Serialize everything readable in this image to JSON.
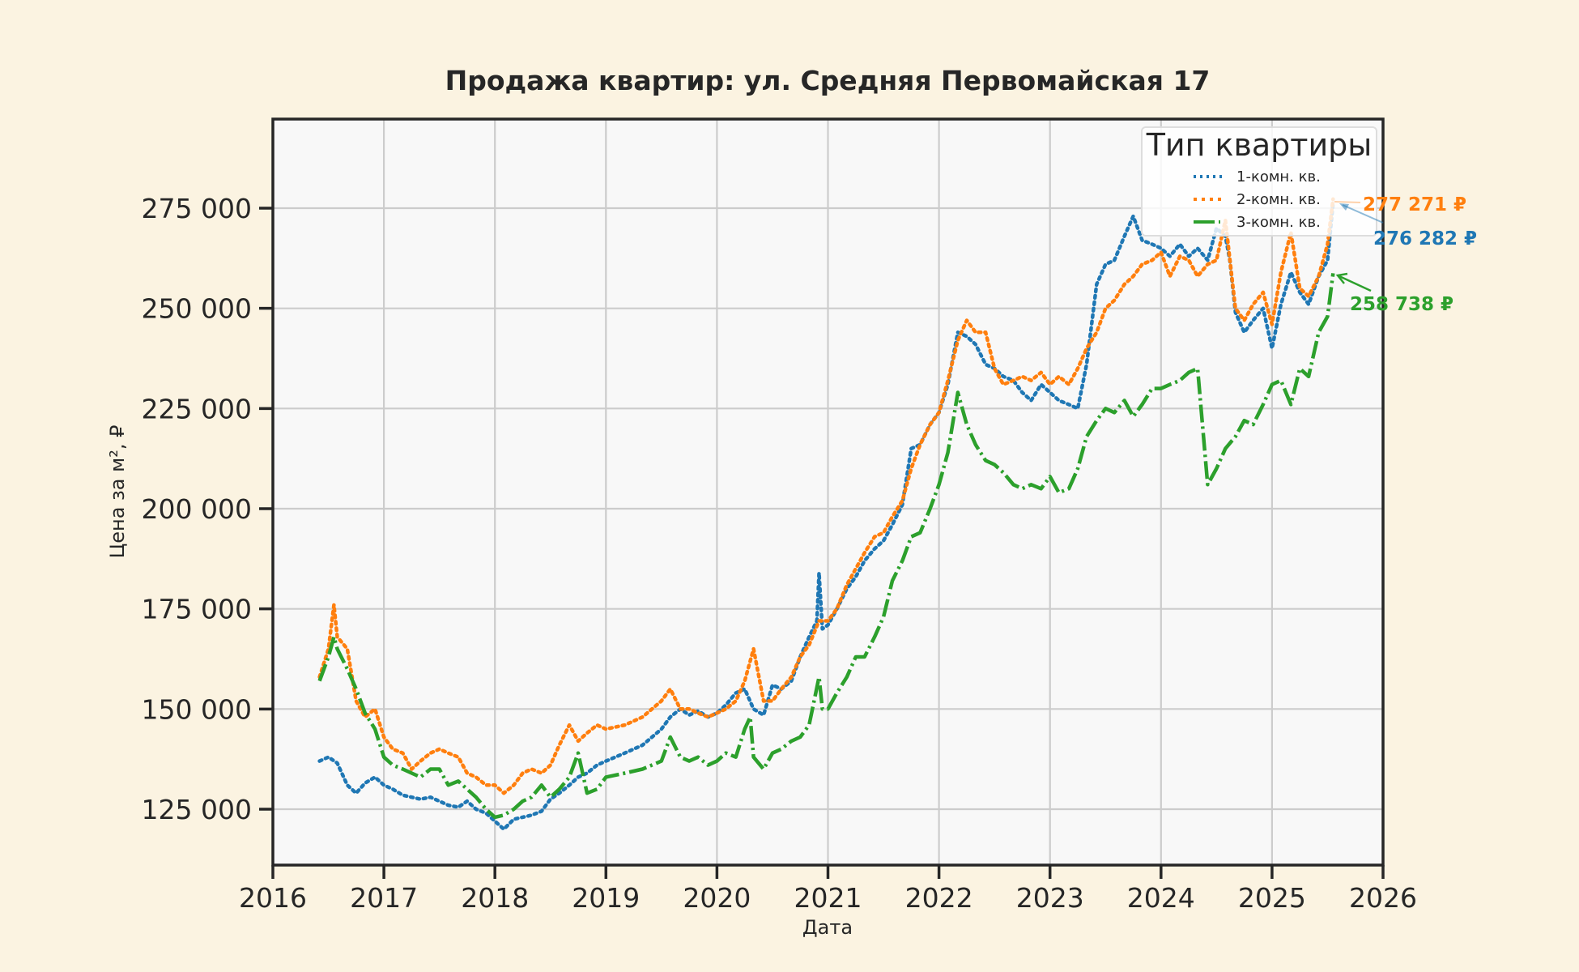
{
  "chart_data": {
    "type": "line",
    "title": "Продажа квартир: ул. Средняя Первомайская 17",
    "xlabel": "Дата",
    "ylabel": "Цена за м², ₽",
    "xlim": [
      2016,
      2026
    ],
    "ylim": [
      111000,
      297500
    ],
    "xticks": [
      2016,
      2017,
      2018,
      2019,
      2020,
      2021,
      2022,
      2023,
      2024,
      2025,
      2026
    ],
    "xtick_labels": [
      "2016",
      "2017",
      "2018",
      "2019",
      "2020",
      "2021",
      "2022",
      "2023",
      "2024",
      "2025",
      "2026"
    ],
    "yticks": [
      125000,
      150000,
      175000,
      200000,
      225000,
      250000,
      275000
    ],
    "ytick_labels": [
      "125 000",
      "150 000",
      "175 000",
      "200 000",
      "225 000",
      "250 000",
      "275 000"
    ],
    "grid": true,
    "legend": {
      "title": "Тип квартиры",
      "position": "upper right",
      "entries": [
        "1-комн. кв.",
        "2-комн. кв.",
        "3-комн. кв."
      ]
    },
    "series": [
      {
        "name": "1-комн. кв.",
        "color": "#1f77b4",
        "style": "dotted",
        "x": [
          2016.42,
          2016.5,
          2016.58,
          2016.67,
          2016.75,
          2016.83,
          2016.92,
          2017.0,
          2017.08,
          2017.17,
          2017.25,
          2017.33,
          2017.42,
          2017.5,
          2017.58,
          2017.67,
          2017.75,
          2017.83,
          2017.92,
          2018.0,
          2018.08,
          2018.17,
          2018.25,
          2018.33,
          2018.42,
          2018.5,
          2018.58,
          2018.67,
          2018.75,
          2018.83,
          2018.92,
          2019.0,
          2019.17,
          2019.33,
          2019.5,
          2019.58,
          2019.67,
          2019.75,
          2019.83,
          2019.92,
          2020.0,
          2020.08,
          2020.17,
          2020.25,
          2020.33,
          2020.42,
          2020.5,
          2020.58,
          2020.67,
          2020.75,
          2020.83,
          2020.9,
          2020.92,
          2020.95,
          2021.0,
          2021.08,
          2021.17,
          2021.25,
          2021.33,
          2021.42,
          2021.5,
          2021.58,
          2021.67,
          2021.75,
          2021.83,
          2021.92,
          2022.0,
          2022.08,
          2022.17,
          2022.25,
          2022.33,
          2022.42,
          2022.5,
          2022.58,
          2022.67,
          2022.75,
          2022.83,
          2022.92,
          2023.0,
          2023.08,
          2023.17,
          2023.25,
          2023.33,
          2023.42,
          2023.5,
          2023.58,
          2023.67,
          2023.75,
          2023.83,
          2023.92,
          2024.0,
          2024.08,
          2024.17,
          2024.25,
          2024.33,
          2024.42,
          2024.5,
          2024.58,
          2024.62,
          2024.67,
          2024.75,
          2024.83,
          2024.92,
          2025.0,
          2025.08,
          2025.17,
          2025.25,
          2025.33,
          2025.42,
          2025.5,
          2025.55
        ],
        "y": [
          137000,
          138000,
          136500,
          131000,
          129000,
          131500,
          133000,
          131000,
          130000,
          128500,
          128000,
          127500,
          128000,
          127000,
          126000,
          125500,
          127000,
          125000,
          124000,
          122000,
          120000,
          122500,
          123000,
          123500,
          124500,
          127500,
          129000,
          131000,
          133000,
          134000,
          136000,
          137000,
          139000,
          141000,
          145000,
          148000,
          150000,
          148500,
          149500,
          148000,
          149000,
          151000,
          154000,
          155000,
          150000,
          148500,
          156000,
          155000,
          157000,
          163000,
          168000,
          172000,
          184000,
          170000,
          171000,
          175000,
          180000,
          183000,
          187000,
          190000,
          192000,
          196000,
          201000,
          215000,
          216000,
          221000,
          224000,
          231000,
          244000,
          243000,
          241000,
          236000,
          235000,
          233000,
          232000,
          229000,
          227000,
          231000,
          229000,
          227000,
          226000,
          225000,
          236000,
          256000,
          261000,
          262000,
          268000,
          273000,
          267000,
          266000,
          265000,
          263000,
          266000,
          263000,
          265000,
          262000,
          270000,
          268000,
          262000,
          249000,
          244000,
          247000,
          250000,
          240000,
          251000,
          259000,
          254000,
          251000,
          258000,
          262000,
          276282
        ]
      },
      {
        "name": "2-комн. кв.",
        "color": "#ff7f0e",
        "style": "dotted",
        "x": [
          2016.42,
          2016.5,
          2016.55,
          2016.58,
          2016.67,
          2016.75,
          2016.83,
          2016.92,
          2017.0,
          2017.08,
          2017.17,
          2017.25,
          2017.33,
          2017.42,
          2017.5,
          2017.58,
          2017.67,
          2017.75,
          2017.83,
          2017.92,
          2018.0,
          2018.08,
          2018.17,
          2018.25,
          2018.33,
          2018.42,
          2018.5,
          2018.58,
          2018.67,
          2018.75,
          2018.83,
          2018.92,
          2019.0,
          2019.17,
          2019.33,
          2019.5,
          2019.58,
          2019.67,
          2019.75,
          2019.83,
          2019.92,
          2020.0,
          2020.08,
          2020.17,
          2020.25,
          2020.33,
          2020.42,
          2020.5,
          2020.58,
          2020.67,
          2020.75,
          2020.83,
          2020.92,
          2021.0,
          2021.08,
          2021.17,
          2021.25,
          2021.33,
          2021.42,
          2021.5,
          2021.58,
          2021.67,
          2021.75,
          2021.83,
          2021.92,
          2022.0,
          2022.08,
          2022.17,
          2022.25,
          2022.33,
          2022.42,
          2022.5,
          2022.58,
          2022.67,
          2022.75,
          2022.83,
          2022.92,
          2023.0,
          2023.08,
          2023.17,
          2023.25,
          2023.33,
          2023.42,
          2023.5,
          2023.58,
          2023.67,
          2023.75,
          2023.83,
          2023.92,
          2024.0,
          2024.08,
          2024.17,
          2024.25,
          2024.33,
          2024.42,
          2024.5,
          2024.58,
          2024.67,
          2024.75,
          2024.83,
          2024.92,
          2025.0,
          2025.08,
          2025.17,
          2025.25,
          2025.33,
          2025.42,
          2025.5,
          2025.55
        ],
        "y": [
          158000,
          165000,
          176000,
          168000,
          165000,
          152000,
          148000,
          150000,
          143000,
          140000,
          139000,
          135000,
          137000,
          139000,
          140000,
          139000,
          138000,
          134000,
          133000,
          131000,
          131000,
          129000,
          131000,
          134000,
          135000,
          134000,
          136000,
          141000,
          146000,
          142000,
          144000,
          146000,
          145000,
          146000,
          148000,
          152000,
          155000,
          150000,
          150000,
          149000,
          148000,
          149000,
          150000,
          152000,
          157000,
          165000,
          152000,
          152000,
          155000,
          158000,
          163000,
          166000,
          172000,
          172000,
          175000,
          181000,
          185000,
          189000,
          193000,
          194000,
          198000,
          202000,
          210000,
          216000,
          221000,
          224000,
          232000,
          242000,
          247000,
          244000,
          244000,
          235000,
          231000,
          232000,
          233000,
          232000,
          234000,
          231000,
          233000,
          231000,
          235000,
          240000,
          244000,
          250000,
          252000,
          256000,
          258000,
          261000,
          262000,
          264000,
          258000,
          263000,
          262000,
          258000,
          261000,
          262000,
          272000,
          250000,
          247000,
          251000,
          254000,
          246000,
          259000,
          269000,
          255000,
          253000,
          258000,
          266000,
          277271
        ]
      },
      {
        "name": "3-комн. кв.",
        "color": "#2ca02c",
        "style": "dashdot",
        "x": [
          2016.42,
          2016.5,
          2016.55,
          2016.58,
          2016.67,
          2016.75,
          2016.83,
          2016.92,
          2017.0,
          2017.08,
          2017.17,
          2017.25,
          2017.33,
          2017.42,
          2017.5,
          2017.58,
          2017.67,
          2017.75,
          2017.83,
          2017.92,
          2018.0,
          2018.08,
          2018.17,
          2018.25,
          2018.33,
          2018.42,
          2018.5,
          2018.58,
          2018.67,
          2018.75,
          2018.83,
          2018.92,
          2019.0,
          2019.17,
          2019.33,
          2019.5,
          2019.58,
          2019.67,
          2019.75,
          2019.83,
          2019.92,
          2020.0,
          2020.08,
          2020.17,
          2020.25,
          2020.3,
          2020.33,
          2020.42,
          2020.5,
          2020.58,
          2020.67,
          2020.75,
          2020.83,
          2020.92,
          2020.95,
          2021.0,
          2021.08,
          2021.17,
          2021.25,
          2021.33,
          2021.42,
          2021.5,
          2021.58,
          2021.67,
          2021.75,
          2021.83,
          2021.92,
          2022.0,
          2022.08,
          2022.17,
          2022.25,
          2022.33,
          2022.42,
          2022.5,
          2022.58,
          2022.67,
          2022.75,
          2022.83,
          2022.92,
          2023.0,
          2023.08,
          2023.17,
          2023.25,
          2023.33,
          2023.42,
          2023.5,
          2023.58,
          2023.67,
          2023.75,
          2023.83,
          2023.92,
          2024.0,
          2024.08,
          2024.17,
          2024.25,
          2024.33,
          2024.42,
          2024.5,
          2024.58,
          2024.67,
          2024.75,
          2024.83,
          2024.92,
          2025.0,
          2025.08,
          2025.17,
          2025.25,
          2025.33,
          2025.42,
          2025.5,
          2025.55
        ],
        "y": [
          157000,
          163000,
          168000,
          165000,
          160000,
          155000,
          149000,
          145000,
          138000,
          136000,
          135000,
          134000,
          133000,
          135000,
          135000,
          131000,
          132000,
          130000,
          128000,
          125000,
          123000,
          123500,
          125000,
          127000,
          128000,
          131000,
          128000,
          130000,
          133000,
          139000,
          129000,
          130000,
          133000,
          134000,
          135000,
          137000,
          143000,
          138000,
          137000,
          138000,
          136000,
          137000,
          139000,
          138000,
          145000,
          148000,
          138000,
          135000,
          139000,
          140000,
          142000,
          143000,
          146000,
          158000,
          150000,
          150000,
          154000,
          158000,
          163000,
          163000,
          168000,
          173000,
          182000,
          187000,
          193000,
          194000,
          200000,
          206000,
          214000,
          229000,
          221000,
          216000,
          212000,
          211000,
          209000,
          206000,
          205000,
          206000,
          205000,
          208000,
          204000,
          205000,
          210000,
          218000,
          222000,
          225000,
          224000,
          227000,
          223000,
          226000,
          230000,
          230000,
          231000,
          232000,
          234000,
          235000,
          206000,
          210000,
          215000,
          218000,
          222000,
          221000,
          226000,
          231000,
          232000,
          226000,
          235000,
          233000,
          244000,
          248000,
          258738
        ]
      }
    ],
    "annotations": [
      {
        "text": "277 271 ₽",
        "series": "2-комн. кв.",
        "color": "#ff7f0e"
      },
      {
        "text": "276 282 ₽",
        "series": "1-комн. кв.",
        "color": "#1f77b4"
      },
      {
        "text": "258 738 ₽",
        "series": "3-комн. кв.",
        "color": "#2ca02c"
      }
    ]
  }
}
